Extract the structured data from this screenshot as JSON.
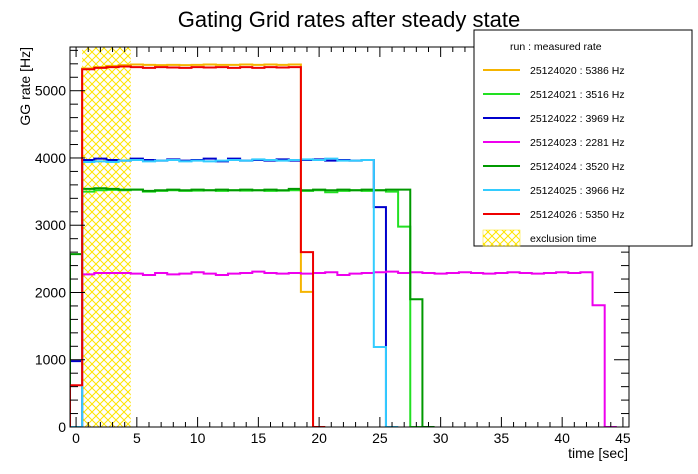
{
  "chart_data": {
    "type": "line",
    "title": "Gating Grid rates after steady state",
    "xlabel": "time [sec]",
    "ylabel": "GG rate [Hz]",
    "xlim": [
      -0.5,
      45.5
    ],
    "ylim": [
      0,
      5650
    ],
    "x_ticks": [
      0,
      5,
      10,
      15,
      20,
      25,
      30,
      35,
      40,
      45
    ],
    "y_ticks": [
      0,
      1000,
      2000,
      3000,
      4000,
      5000
    ],
    "bin_width": 1,
    "legend": {
      "position": "top-right",
      "header": "run : measured rate"
    },
    "exclusion": {
      "label": "exclusion time",
      "x_range": [
        0.5,
        4.5
      ],
      "color": "#ffee00"
    },
    "series": [
      {
        "name": "25124020 : 5386 Hz",
        "color": "#f5b400",
        "bins": [
          [
            -0.5,
            0
          ],
          [
            0.5,
            5330
          ],
          [
            1.5,
            5350
          ],
          [
            2.5,
            5370
          ],
          [
            3.5,
            5380
          ],
          [
            4.5,
            5390
          ],
          [
            5.5,
            5385
          ],
          [
            6.5,
            5380
          ],
          [
            7.5,
            5385
          ],
          [
            8.5,
            5380
          ],
          [
            9.5,
            5385
          ],
          [
            10.5,
            5390
          ],
          [
            11.5,
            5385
          ],
          [
            12.5,
            5385
          ],
          [
            13.5,
            5390
          ],
          [
            14.5,
            5385
          ],
          [
            15.5,
            5390
          ],
          [
            16.5,
            5385
          ],
          [
            17.5,
            5390
          ],
          [
            18.5,
            2010
          ],
          [
            19.5,
            0
          ]
        ]
      },
      {
        "name": "25124021 : 3516 Hz",
        "color": "#22e022",
        "bins": [
          [
            -0.5,
            0
          ],
          [
            0.5,
            3500
          ],
          [
            1.5,
            3520
          ],
          [
            2.5,
            3525
          ],
          [
            3.5,
            3520
          ],
          [
            4.5,
            3530
          ],
          [
            5.5,
            3500
          ],
          [
            6.5,
            3510
          ],
          [
            7.5,
            3520
          ],
          [
            8.5,
            3510
          ],
          [
            9.5,
            3515
          ],
          [
            10.5,
            3520
          ],
          [
            11.5,
            3510
          ],
          [
            12.5,
            3520
          ],
          [
            13.5,
            3515
          ],
          [
            14.5,
            3520
          ],
          [
            15.5,
            3510
          ],
          [
            16.5,
            3515
          ],
          [
            17.5,
            3520
          ],
          [
            18.5,
            3510
          ],
          [
            19.5,
            3520
          ],
          [
            20.5,
            3490
          ],
          [
            21.5,
            3510
          ],
          [
            22.5,
            3520
          ],
          [
            23.5,
            3510
          ],
          [
            24.5,
            3520
          ],
          [
            25.5,
            3500
          ],
          [
            26.5,
            2980
          ],
          [
            27.5,
            0
          ]
        ]
      },
      {
        "name": "25124022 : 3969 Hz",
        "color": "#0000cc",
        "bins": [
          [
            -0.5,
            980
          ],
          [
            0.5,
            3970
          ],
          [
            1.5,
            3990
          ],
          [
            2.5,
            3970
          ],
          [
            3.5,
            3960
          ],
          [
            4.5,
            3990
          ],
          [
            5.5,
            3970
          ],
          [
            6.5,
            3960
          ],
          [
            7.5,
            3980
          ],
          [
            8.5,
            3960
          ],
          [
            9.5,
            3970
          ],
          [
            10.5,
            3990
          ],
          [
            11.5,
            3950
          ],
          [
            12.5,
            3990
          ],
          [
            13.5,
            3960
          ],
          [
            14.5,
            3970
          ],
          [
            15.5,
            3960
          ],
          [
            16.5,
            3980
          ],
          [
            17.5,
            3960
          ],
          [
            18.5,
            3970
          ],
          [
            19.5,
            3980
          ],
          [
            20.5,
            3960
          ],
          [
            21.5,
            3970
          ],
          [
            22.5,
            3960
          ],
          [
            23.5,
            3970
          ],
          [
            24.5,
            3270
          ],
          [
            25.5,
            0
          ]
        ]
      },
      {
        "name": "25124023 : 2281 Hz",
        "color": "#ee00ee",
        "bins": [
          [
            -0.5,
            0
          ],
          [
            0.5,
            2270
          ],
          [
            1.5,
            2290
          ],
          [
            2.5,
            2290
          ],
          [
            3.5,
            2290
          ],
          [
            4.5,
            2280
          ],
          [
            5.5,
            2260
          ],
          [
            6.5,
            2290
          ],
          [
            7.5,
            2270
          ],
          [
            8.5,
            2280
          ],
          [
            9.5,
            2300
          ],
          [
            10.5,
            2280
          ],
          [
            11.5,
            2260
          ],
          [
            12.5,
            2280
          ],
          [
            13.5,
            2290
          ],
          [
            14.5,
            2310
          ],
          [
            15.5,
            2290
          ],
          [
            16.5,
            2280
          ],
          [
            17.5,
            2290
          ],
          [
            18.5,
            2280
          ],
          [
            19.5,
            2290
          ],
          [
            20.5,
            2300
          ],
          [
            21.5,
            2260
          ],
          [
            22.5,
            2280
          ],
          [
            23.5,
            2290
          ],
          [
            24.5,
            2300
          ],
          [
            25.5,
            2310
          ],
          [
            26.5,
            2290
          ],
          [
            27.5,
            2300
          ],
          [
            28.5,
            2290
          ],
          [
            29.5,
            2280
          ],
          [
            30.5,
            2290
          ],
          [
            31.5,
            2300
          ],
          [
            32.5,
            2290
          ],
          [
            33.5,
            2280
          ],
          [
            34.5,
            2290
          ],
          [
            35.5,
            2300
          ],
          [
            36.5,
            2290
          ],
          [
            37.5,
            2280
          ],
          [
            38.5,
            2290
          ],
          [
            39.5,
            2300
          ],
          [
            40.5,
            2290
          ],
          [
            41.5,
            2300
          ],
          [
            42.5,
            1810
          ],
          [
            43.5,
            0
          ]
        ]
      },
      {
        "name": "25124024 : 3520 Hz",
        "color": "#009900",
        "bins": [
          [
            -0.5,
            2570
          ],
          [
            0.5,
            3540
          ],
          [
            1.5,
            3550
          ],
          [
            2.5,
            3540
          ],
          [
            3.5,
            3530
          ],
          [
            4.5,
            3530
          ],
          [
            5.5,
            3510
          ],
          [
            6.5,
            3520
          ],
          [
            7.5,
            3530
          ],
          [
            8.5,
            3520
          ],
          [
            9.5,
            3530
          ],
          [
            10.5,
            3520
          ],
          [
            11.5,
            3530
          ],
          [
            12.5,
            3520
          ],
          [
            13.5,
            3530
          ],
          [
            14.5,
            3520
          ],
          [
            15.5,
            3530
          ],
          [
            16.5,
            3520
          ],
          [
            17.5,
            3540
          ],
          [
            18.5,
            3520
          ],
          [
            19.5,
            3530
          ],
          [
            20.5,
            3520
          ],
          [
            21.5,
            3530
          ],
          [
            22.5,
            3520
          ],
          [
            23.5,
            3530
          ],
          [
            24.5,
            3520
          ],
          [
            25.5,
            3530
          ],
          [
            26.5,
            3530
          ],
          [
            27.5,
            1900
          ],
          [
            28.5,
            0
          ]
        ]
      },
      {
        "name": "25124025 : 3966 Hz",
        "color": "#33ccff",
        "bins": [
          [
            -0.5,
            0
          ],
          [
            0.5,
            3940
          ],
          [
            1.5,
            3950
          ],
          [
            2.5,
            3940
          ],
          [
            3.5,
            3960
          ],
          [
            4.5,
            3970
          ],
          [
            5.5,
            3950
          ],
          [
            6.5,
            3960
          ],
          [
            7.5,
            3970
          ],
          [
            8.5,
            3950
          ],
          [
            9.5,
            3960
          ],
          [
            10.5,
            3950
          ],
          [
            11.5,
            3960
          ],
          [
            12.5,
            3970
          ],
          [
            13.5,
            3960
          ],
          [
            14.5,
            3980
          ],
          [
            15.5,
            3970
          ],
          [
            16.5,
            3960
          ],
          [
            17.5,
            3970
          ],
          [
            18.5,
            3980
          ],
          [
            19.5,
            3970
          ],
          [
            20.5,
            3990
          ],
          [
            21.5,
            3960
          ],
          [
            22.5,
            3960
          ],
          [
            23.5,
            3970
          ],
          [
            24.5,
            1190
          ],
          [
            25.5,
            0
          ]
        ]
      },
      {
        "name": "25124026 : 5350 Hz",
        "color": "#ee0000",
        "bins": [
          [
            -0.5,
            620
          ],
          [
            0.5,
            5320
          ],
          [
            1.5,
            5340
          ],
          [
            2.5,
            5350
          ],
          [
            3.5,
            5360
          ],
          [
            4.5,
            5350
          ],
          [
            5.5,
            5340
          ],
          [
            6.5,
            5350
          ],
          [
            7.5,
            5345
          ],
          [
            8.5,
            5340
          ],
          [
            9.5,
            5350
          ],
          [
            10.5,
            5345
          ],
          [
            11.5,
            5350
          ],
          [
            12.5,
            5340
          ],
          [
            13.5,
            5350
          ],
          [
            14.5,
            5340
          ],
          [
            15.5,
            5350
          ],
          [
            16.5,
            5345
          ],
          [
            17.5,
            5350
          ],
          [
            18.5,
            2600
          ],
          [
            19.5,
            0
          ]
        ]
      }
    ]
  }
}
